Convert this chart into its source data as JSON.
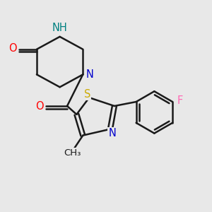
{
  "bg_color": "#e8e8e8",
  "bond_color": "#1a1a1a",
  "atom_colors": {
    "O": "#ff0000",
    "N": "#0000cc",
    "S": "#ccaa00",
    "F": "#ff69b4",
    "H": "#008080",
    "C": "#1a1a1a"
  },
  "line_width": 1.8,
  "font_size": 10.5
}
